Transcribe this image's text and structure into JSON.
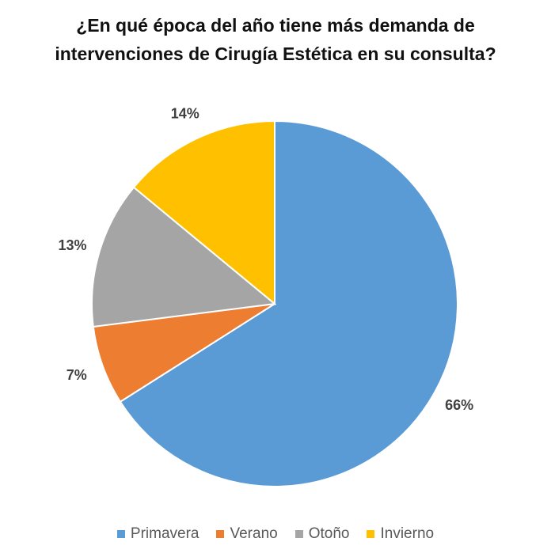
{
  "chart_data": {
    "type": "pie",
    "title_lines": [
      "¿En qué época del año tiene más demanda de",
      "intervenciones de Cirugía Estética en su consulta?"
    ],
    "categories": [
      "Primavera",
      "Verano",
      "Otoño",
      "Invierno"
    ],
    "values": [
      66,
      7,
      13,
      14
    ],
    "labels": [
      "66%",
      "7%",
      "13%",
      "14%"
    ],
    "colors": [
      "#5B9BD5",
      "#ED7D31",
      "#A5A5A5",
      "#FFC000"
    ],
    "start": "top, clockwise",
    "legend": "bottom"
  }
}
